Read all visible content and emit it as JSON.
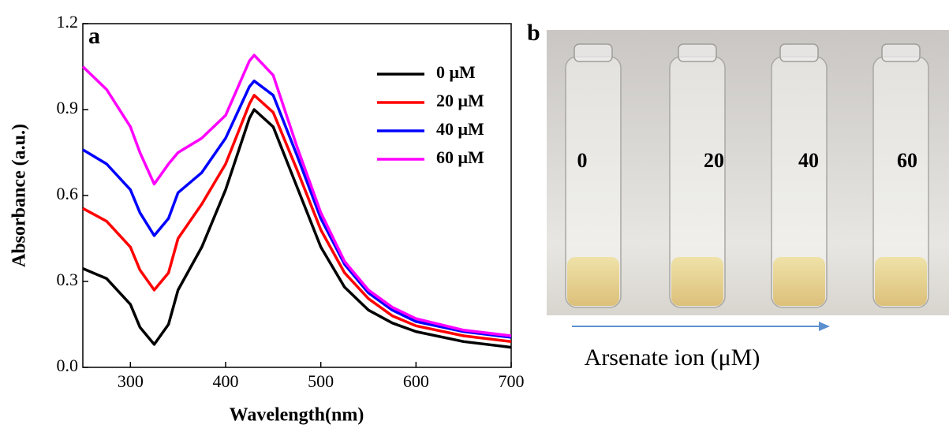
{
  "chart_data": {
    "type": "line",
    "panel_label": "a",
    "x_label": "Wavelength(nm)",
    "y_label": "Absorbance (a.u.)",
    "x": [
      250,
      275,
      300,
      310,
      325,
      340,
      350,
      375,
      400,
      425,
      430,
      450,
      475,
      500,
      525,
      550,
      575,
      600,
      650,
      700
    ],
    "series": [
      {
        "name": "0 μM",
        "color": "#000000",
        "values": [
          0.345,
          0.31,
          0.22,
          0.14,
          0.08,
          0.15,
          0.27,
          0.42,
          0.62,
          0.87,
          0.9,
          0.84,
          0.63,
          0.42,
          0.28,
          0.2,
          0.155,
          0.125,
          0.09,
          0.07
        ]
      },
      {
        "name": "20 μM",
        "color": "#ff0000",
        "values": [
          0.555,
          0.51,
          0.42,
          0.34,
          0.27,
          0.33,
          0.45,
          0.57,
          0.71,
          0.92,
          0.95,
          0.89,
          0.69,
          0.48,
          0.33,
          0.24,
          0.18,
          0.145,
          0.11,
          0.09
        ]
      },
      {
        "name": "40 μM",
        "color": "#0000ff",
        "values": [
          0.76,
          0.71,
          0.62,
          0.54,
          0.46,
          0.52,
          0.61,
          0.68,
          0.8,
          0.98,
          1.0,
          0.95,
          0.74,
          0.52,
          0.36,
          0.26,
          0.2,
          0.16,
          0.125,
          0.105
        ]
      },
      {
        "name": "60 μM",
        "color": "#ff00ff",
        "values": [
          1.05,
          0.97,
          0.84,
          0.75,
          0.64,
          0.71,
          0.75,
          0.8,
          0.88,
          1.07,
          1.09,
          1.02,
          0.77,
          0.54,
          0.37,
          0.27,
          0.21,
          0.17,
          0.13,
          0.11
        ]
      }
    ],
    "xlim": [
      250,
      700
    ],
    "xticks": [
      300,
      400,
      500,
      600,
      700
    ],
    "ylim": [
      0,
      1.2
    ],
    "yticks": [
      {
        "value": 0,
        "label": "0.0"
      },
      0.3,
      0.6,
      0.9,
      1.2
    ],
    "legend": "upper right"
  },
  "photo": {
    "panel_label": "b",
    "vial_labels": [
      "0",
      "20",
      "40",
      "60"
    ],
    "caption": "Arsenate ion (μM)"
  }
}
